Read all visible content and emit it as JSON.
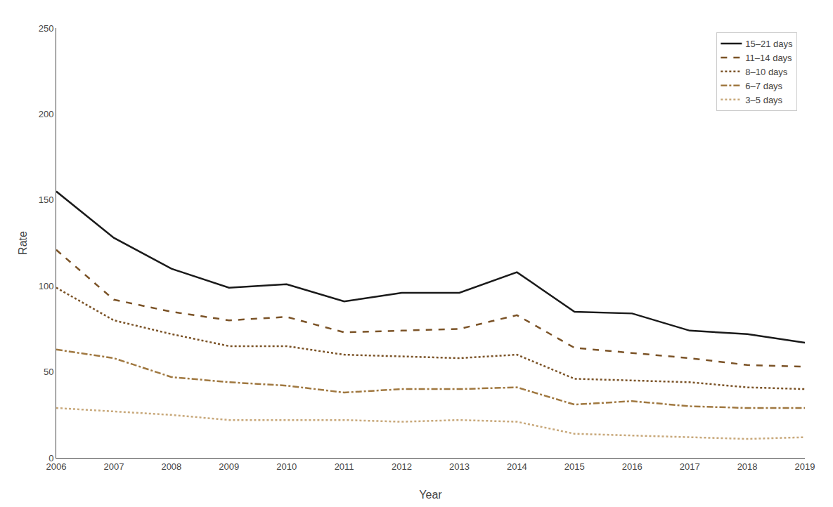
{
  "chart_data": {
    "type": "line",
    "x": [
      2006,
      2007,
      2008,
      2009,
      2010,
      2011,
      2012,
      2013,
      2014,
      2015,
      2016,
      2017,
      2018,
      2019
    ],
    "series": [
      {
        "name": "15–21 days",
        "color": "#1a1a1a",
        "line_style": "solid",
        "values": [
          155,
          128,
          110,
          99,
          101,
          91,
          96,
          96,
          108,
          85,
          84,
          74,
          72,
          67
        ]
      },
      {
        "name": "11–14 days",
        "color": "#7B5327",
        "line_style": "dashed",
        "values": [
          121,
          92,
          85,
          80,
          82,
          73,
          74,
          75,
          83,
          64,
          61,
          58,
          54,
          53
        ]
      },
      {
        "name": "8–10 days",
        "color": "#7B5327",
        "line_style": "dotted",
        "values": [
          99,
          80,
          72,
          65,
          65,
          60,
          59,
          58,
          60,
          46,
          45,
          44,
          41,
          40
        ]
      },
      {
        "name": "6–7 days",
        "color": "#A07840",
        "line_style": "dashdot",
        "values": [
          63,
          58,
          47,
          44,
          42,
          38,
          40,
          40,
          41,
          31,
          33,
          30,
          29,
          29
        ]
      },
      {
        "name": "3–5 days",
        "color": "#C8A87A",
        "line_style": "dotted",
        "values": [
          29,
          27,
          25,
          22,
          22,
          22,
          21,
          22,
          21,
          14,
          13,
          12,
          11,
          12
        ]
      }
    ],
    "xlabel": "Year",
    "ylabel": "Rate",
    "xlim": [
      2006,
      2019
    ],
    "xticks": [
      2006,
      2007,
      2008,
      2009,
      2010,
      2011,
      2012,
      2013,
      2014,
      2015,
      2016,
      2017,
      2018,
      2019
    ],
    "ylim": [
      0,
      250
    ],
    "yticks": [
      0,
      50,
      100,
      150,
      200,
      250
    ],
    "grid": false,
    "legend": "upper right"
  }
}
